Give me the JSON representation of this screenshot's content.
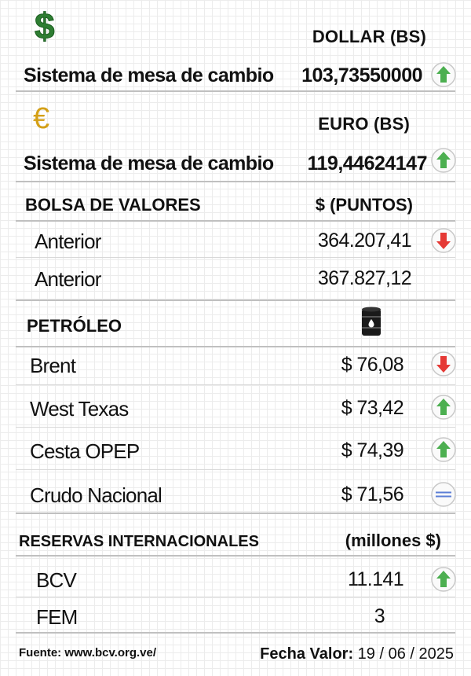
{
  "dollar": {
    "icon": "dollar-sign-icon",
    "symbol": "$",
    "header": "DOLLAR (BS)",
    "row_label": "Sistema de mesa de cambio",
    "value": "103,73550000",
    "trend": "up"
  },
  "euro": {
    "icon": "euro-sign-icon",
    "symbol": "€",
    "header": "EURO (BS)",
    "row_label": "Sistema de mesa de cambio",
    "value": "119,44624147",
    "trend": "up"
  },
  "bolsa": {
    "title": "BOLSA DE VALORES",
    "unit": "$ (PUNTOS)",
    "rows": [
      {
        "label": "Anterior",
        "value": "364.207,41",
        "trend": "down"
      },
      {
        "label": "Anterior",
        "value": "367.827,12",
        "trend": "none"
      }
    ]
  },
  "petroleo": {
    "title": "PETRÓLEO",
    "icon": "oil-barrel-icon",
    "rows": [
      {
        "label": "Brent",
        "value": "$ 76,08",
        "trend": "down"
      },
      {
        "label": "West Texas",
        "value": "$ 73,42",
        "trend": "up"
      },
      {
        "label": "Cesta OPEP",
        "value": "$ 74,39",
        "trend": "up"
      },
      {
        "label": "Crudo Nacional",
        "value": "$ 71,56",
        "trend": "equal"
      }
    ]
  },
  "reservas": {
    "title": "RESERVAS INTERNACIONALES",
    "unit": "(millones $)",
    "rows": [
      {
        "label": "BCV",
        "value": "11.141",
        "trend": "up"
      },
      {
        "label": "FEM",
        "value": "3",
        "trend": "none"
      }
    ]
  },
  "footer": {
    "source": "Fuente: www.bcv.org.ve/",
    "date_label": "Fecha Valor:",
    "date_value": "19 / 06 / 2025"
  },
  "colors": {
    "dollar_green": "#2e7d32",
    "euro_gold": "#d4a017",
    "up_green": "#4caf50",
    "down_red": "#e53935",
    "equal_blue": "#5c7fd6"
  }
}
